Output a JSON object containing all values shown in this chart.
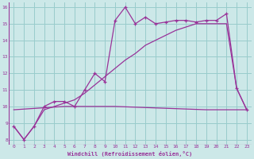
{
  "xlabel": "Windchill (Refroidissement éolien,°C)",
  "bg_color": "#cce8e8",
  "grid_color": "#99cccc",
  "line_color": "#993399",
  "xlim": [
    -0.5,
    23.5
  ],
  "ylim": [
    7.7,
    16.3
  ],
  "xticks": [
    0,
    1,
    2,
    3,
    4,
    5,
    6,
    7,
    8,
    9,
    10,
    11,
    12,
    13,
    14,
    15,
    16,
    17,
    18,
    19,
    20,
    21,
    22,
    23
  ],
  "yticks": [
    8,
    9,
    10,
    11,
    12,
    13,
    14,
    15,
    16
  ],
  "line1_x": [
    0,
    1,
    2,
    3,
    4,
    5,
    6,
    7,
    8,
    9,
    10,
    11,
    12,
    13,
    14,
    15,
    16,
    17,
    18,
    19,
    20,
    21,
    22,
    23
  ],
  "line1_y": [
    8.8,
    8.0,
    8.8,
    10.0,
    10.3,
    10.3,
    10.0,
    11.0,
    12.0,
    11.5,
    15.2,
    16.0,
    15.0,
    15.4,
    15.0,
    15.1,
    15.2,
    15.2,
    15.1,
    15.2,
    15.2,
    15.6,
    11.1,
    9.8
  ],
  "line2_x": [
    0,
    1,
    2,
    3,
    4,
    5,
    6,
    7,
    8,
    9,
    10,
    11,
    12,
    13,
    14,
    15,
    16,
    17,
    18,
    19,
    20,
    21,
    22,
    23
  ],
  "line2_y": [
    8.8,
    8.0,
    8.8,
    9.8,
    10.0,
    10.2,
    10.4,
    10.8,
    11.3,
    11.8,
    12.3,
    12.8,
    13.2,
    13.7,
    14.0,
    14.3,
    14.6,
    14.8,
    15.0,
    15.0,
    15.0,
    15.0,
    11.1,
    9.8
  ],
  "line3_x": [
    0,
    5,
    10,
    19,
    23
  ],
  "line3_y": [
    9.8,
    10.0,
    10.0,
    9.8,
    9.8
  ]
}
